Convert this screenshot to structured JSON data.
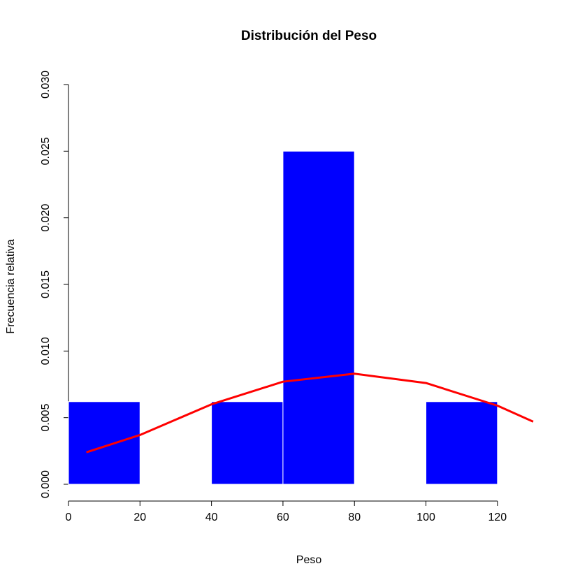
{
  "chart_data": {
    "type": "histogram",
    "title": "Distribución del Peso",
    "x_label": "Peso",
    "y_label": "Frecuencia relativa",
    "bins": [
      0,
      20,
      40,
      60,
      80,
      100,
      120
    ],
    "values": [
      0.0062,
      0,
      0.0062,
      0.025,
      0,
      0.0062
    ],
    "color": "#0000ff",
    "density_curve": {
      "x": [
        5,
        20,
        40,
        60,
        80,
        100,
        120,
        130
      ],
      "values": [
        0.0024,
        0.0037,
        0.006,
        0.0077,
        0.0083,
        0.0076,
        0.0059,
        0.0047
      ],
      "color": "#ff0000"
    },
    "xlim": [
      0,
      130
    ],
    "ylim": [
      0,
      0.03
    ],
    "xticks": [
      0,
      20,
      40,
      60,
      80,
      100,
      120
    ],
    "yticks": [
      {
        "value": 0,
        "label": "0.000"
      },
      {
        "value": 0.005,
        "label": "0.005"
      },
      {
        "value": 0.01,
        "label": "0.010"
      },
      {
        "value": 0.015,
        "label": "0.015"
      },
      {
        "value": 0.02,
        "label": "0.020"
      },
      {
        "value": 0.025,
        "label": "0.025"
      },
      {
        "value": 0.03,
        "label": "0.030"
      }
    ]
  }
}
